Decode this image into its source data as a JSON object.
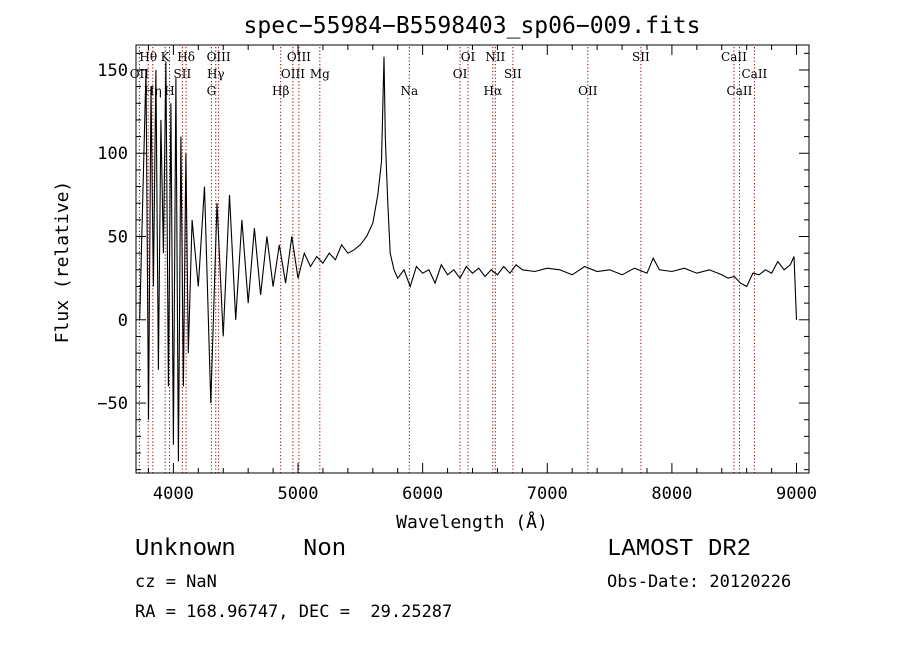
{
  "chart_data": {
    "type": "line",
    "title": "spec−55984−B5598403_sp06−009.fits",
    "xlabel": "Wavelength (Å)",
    "ylabel": "Flux (relative)",
    "xlim": [
      3700,
      9100
    ],
    "ylim": [
      -92,
      165
    ],
    "x_ticks": [
      4000,
      5000,
      6000,
      7000,
      8000,
      9000
    ],
    "y_ticks": [
      -50,
      0,
      50,
      100,
      150
    ],
    "y_tick_labels": [
      "−50",
      "0",
      "50",
      "100",
      "150"
    ],
    "grid": false,
    "line_color": "#000000",
    "marker_color": "#8b0000",
    "series": [
      {
        "x": [
          3730,
          3780,
          3800,
          3820,
          3840,
          3860,
          3880,
          3900,
          3920,
          3940,
          3960,
          3980,
          4000,
          4020,
          4040,
          4060,
          4080,
          4100,
          4120,
          4150,
          4200,
          4250,
          4300,
          4350,
          4400,
          4450,
          4500,
          4550,
          4600,
          4650,
          4700,
          4750,
          4800,
          4850,
          4900,
          4950,
          5000,
          5050,
          5100,
          5150,
          5200,
          5250,
          5300,
          5350,
          5400,
          5450,
          5500,
          5550,
          5600,
          5640,
          5670,
          5690,
          5700,
          5710,
          5720,
          5740,
          5770,
          5800,
          5850,
          5900,
          5950,
          6000,
          6050,
          6100,
          6150,
          6200,
          6250,
          6300,
          6350,
          6400,
          6450,
          6500,
          6550,
          6600,
          6650,
          6700,
          6750,
          6800,
          6900,
          7000,
          7100,
          7200,
          7300,
          7400,
          7500,
          7600,
          7700,
          7800,
          7850,
          7900,
          8000,
          8100,
          8200,
          8300,
          8400,
          8450,
          8500,
          8550,
          8600,
          8650,
          8700,
          8750,
          8800,
          8850,
          8900,
          8950,
          8980,
          9000
        ],
        "y": [
          0,
          150,
          -60,
          140,
          20,
          150,
          -30,
          120,
          40,
          155,
          -40,
          130,
          -75,
          145,
          -85,
          110,
          -40,
          100,
          -20,
          60,
          20,
          80,
          -50,
          70,
          -10,
          75,
          0,
          60,
          10,
          55,
          15,
          50,
          20,
          45,
          22,
          50,
          25,
          40,
          32,
          38,
          34,
          40,
          36,
          45,
          40,
          42,
          45,
          50,
          58,
          75,
          95,
          158,
          110,
          90,
          70,
          40,
          30,
          25,
          30,
          20,
          32,
          28,
          30,
          22,
          33,
          27,
          30,
          25,
          32,
          28,
          31,
          26,
          30,
          27,
          32,
          28,
          33,
          30,
          29,
          31,
          30,
          27,
          32,
          29,
          30,
          27,
          31,
          28,
          37,
          30,
          29,
          31,
          28,
          30,
          27,
          25,
          26,
          22,
          20,
          28,
          27,
          30,
          28,
          35,
          30,
          33,
          38,
          0
        ]
      }
    ],
    "lines": [
      {
        "label": "Hθ",
        "x": 3798
      },
      {
        "label": "OII",
        "x": 3727
      },
      {
        "label": "Hη",
        "x": 3835
      },
      {
        "label": "K",
        "x": 3934
      },
      {
        "label": "SII",
        "x": 4072
      },
      {
        "label": "H",
        "x": 3969
      },
      {
        "label": "Hδ",
        "x": 4102
      },
      {
        "label": "Hγ",
        "x": 4340
      },
      {
        "label": "G",
        "x": 4305
      },
      {
        "label": "OIII",
        "x": 4363
      },
      {
        "label": "OIII",
        "x": 4959
      },
      {
        "label": "Hβ",
        "x": 4861
      },
      {
        "label": "OIII",
        "x": 5007
      },
      {
        "label": "Mg",
        "x": 5175
      },
      {
        "label": "Na",
        "x": 5893
      },
      {
        "label": "OI",
        "x": 6364
      },
      {
        "label": "OI",
        "x": 6300
      },
      {
        "label": "Hα",
        "x": 6563
      },
      {
        "label": "NII",
        "x": 6583
      },
      {
        "label": "SII",
        "x": 6724
      },
      {
        "label": "OII",
        "x": 7325
      },
      {
        "label": "SII",
        "x": 7751
      },
      {
        "label": "CaII",
        "x": 8662
      },
      {
        "label": "CaII",
        "x": 8542
      },
      {
        "label": "CaII",
        "x": 8498
      }
    ]
  },
  "info": {
    "obj_class": "Unknown",
    "obj_subclass": "Non",
    "survey": "LAMOST DR2",
    "cz": "cz = NaN",
    "obs_date": "Obs-Date: 20120226",
    "radec": "RA = 168.96747, DEC =  29.25287"
  }
}
